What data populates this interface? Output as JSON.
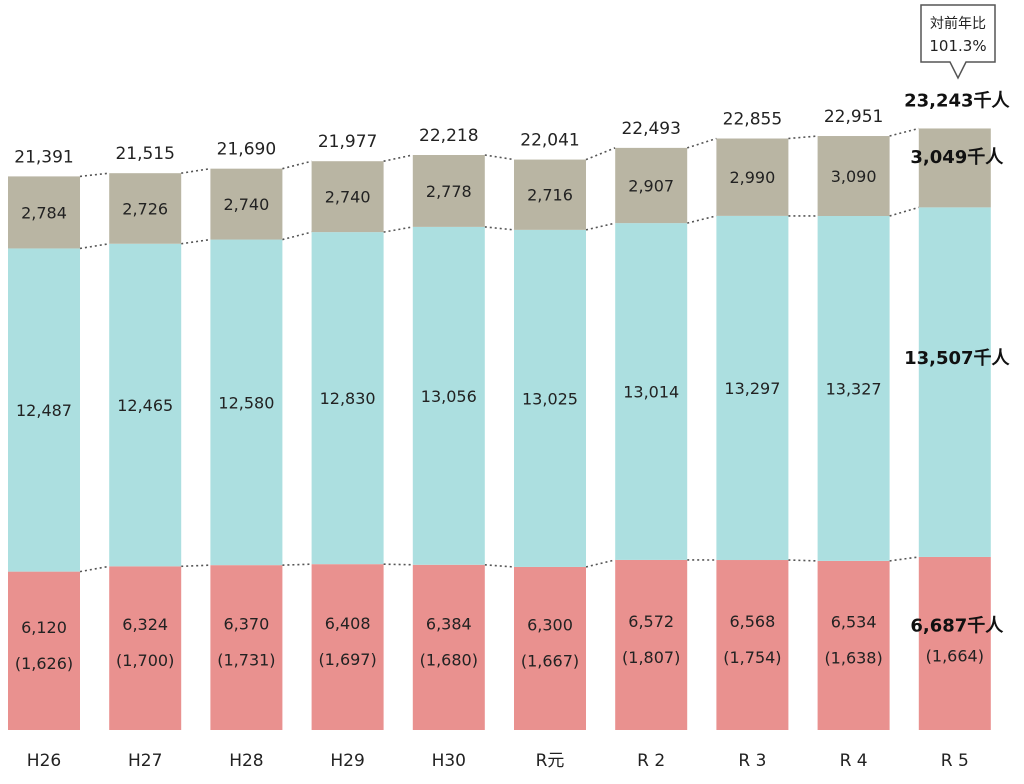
{
  "chart_data": {
    "type": "bar",
    "stacked": true,
    "categories": [
      "H26",
      "H27",
      "H28",
      "H29",
      "H30",
      "R元",
      "R 2",
      "R 3",
      "R 4",
      "R 5"
    ],
    "series": [
      {
        "color": "#e9918f",
        "values": [
          6120,
          6324,
          6370,
          6408,
          6384,
          6300,
          6572,
          6568,
          6534,
          6687
        ],
        "sub_labels": [
          "(1,626)",
          "(1,700)",
          "(1,731)",
          "(1,697)",
          "(1,680)",
          "(1,667)",
          "(1,807)",
          "(1,754)",
          "(1,638)",
          "(1,664)"
        ]
      },
      {
        "color": "#acdfe0",
        "values": [
          12487,
          12465,
          12580,
          12830,
          13056,
          13025,
          13014,
          13297,
          13327,
          13507
        ]
      },
      {
        "color": "#b9b5a3",
        "values": [
          2784,
          2726,
          2740,
          2740,
          2778,
          2716,
          2907,
          2990,
          3090,
          3049
        ]
      }
    ],
    "totals": [
      21391,
      21515,
      21690,
      21977,
      22218,
      22041,
      22493,
      22855,
      22951,
      23243
    ],
    "last_bar_labels": {
      "total": "23,243千人",
      "top": "3,049千人",
      "middle": "13,507千人",
      "bottom": "6,687千人",
      "bottom_sub": "(1,664)"
    },
    "callout": {
      "line1": "対前年比",
      "line2": "101.3%"
    },
    "connector_lines": "dotted",
    "grid": false,
    "legend": "none"
  }
}
